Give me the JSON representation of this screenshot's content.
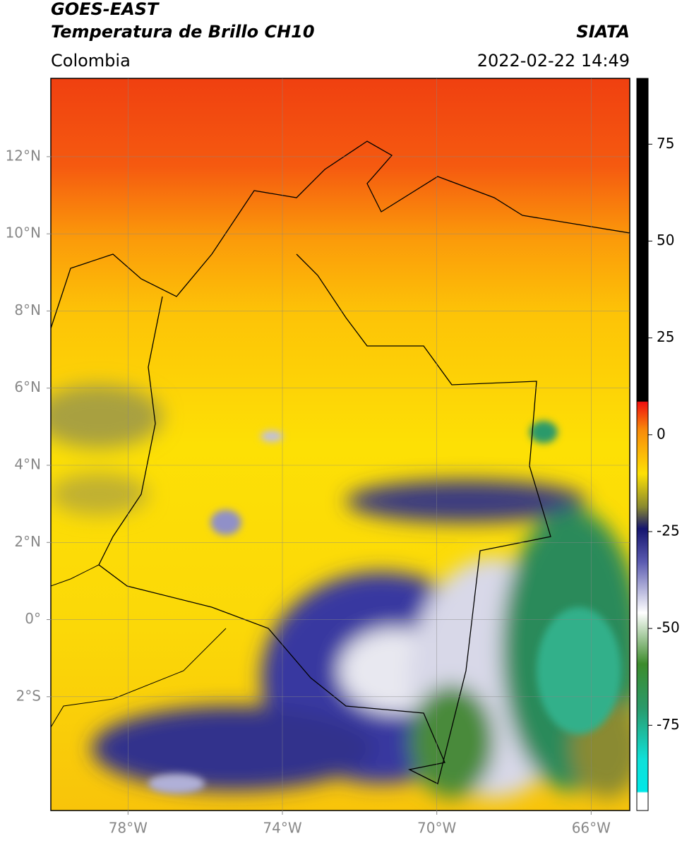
{
  "header": {
    "title": "GOES-EAST",
    "subtitle": "Temperatura de Brillo CH10",
    "region": "Colombia",
    "source": "SIATA",
    "datetime": "2022-02-22 14:49"
  },
  "map": {
    "xlim": [
      -80,
      -65
    ],
    "ylim": [
      -4.95,
      14.03
    ],
    "xticks": [
      {
        "value": -78,
        "label": "78°W"
      },
      {
        "value": -74,
        "label": "74°W"
      },
      {
        "value": -70,
        "label": "70°W"
      },
      {
        "value": -66,
        "label": "66°W"
      }
    ],
    "yticks": [
      {
        "value": 12,
        "label": "12°N"
      },
      {
        "value": 10,
        "label": "10°N"
      },
      {
        "value": 8,
        "label": "8°N"
      },
      {
        "value": 6,
        "label": "6°N"
      },
      {
        "value": 4,
        "label": "4°N"
      },
      {
        "value": 2,
        "label": "2°N"
      },
      {
        "value": 0,
        "label": "0°"
      },
      {
        "value": -2,
        "label": "2°S"
      }
    ],
    "grid": true
  },
  "colorbar": {
    "lim": [
      -97,
      92
    ],
    "ticks": [
      75,
      50,
      25,
      0,
      -25,
      -50,
      -75
    ]
  }
}
